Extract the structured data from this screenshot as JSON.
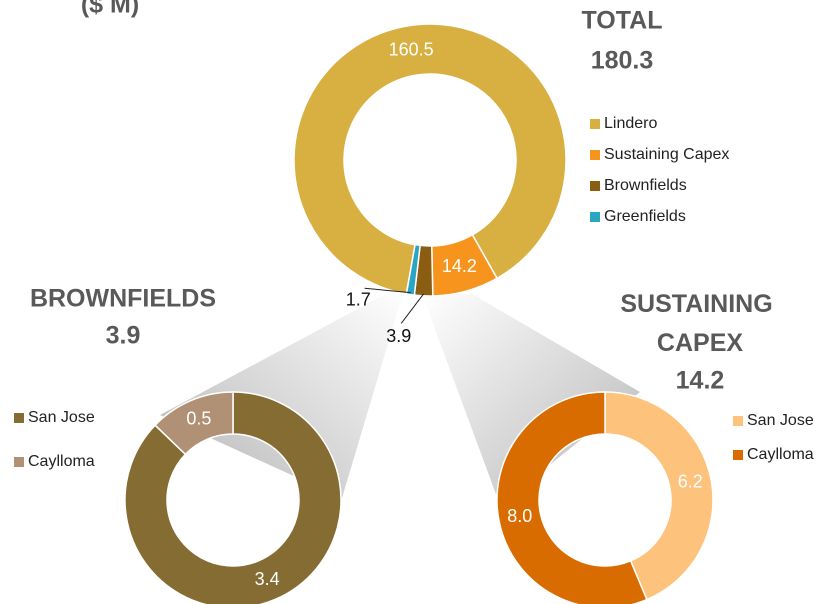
{
  "unit_label": "($ M)",
  "chart_data": [
    {
      "type": "pie",
      "title": "TOTAL",
      "total": 180.3,
      "categories": [
        "Lindero",
        "Sustaining Capex",
        "Brownfields",
        "Greenfields"
      ],
      "values": [
        160.5,
        14.2,
        3.9,
        1.7
      ],
      "colors": [
        "#d8b042",
        "#f7941d",
        "#8a5d12",
        "#2aa5c2"
      ]
    },
    {
      "type": "pie",
      "title": "BROWNFIELDS",
      "total": 3.9,
      "categories": [
        "San Jose",
        "Caylloma"
      ],
      "values": [
        3.4,
        0.5
      ],
      "colors": [
        "#856c33",
        "#b09175"
      ]
    },
    {
      "type": "pie",
      "title": "SUSTAINING CAPEX",
      "total": 14.2,
      "categories": [
        "San Jose",
        "Caylloma"
      ],
      "values": [
        6.2,
        8
      ],
      "value_labels": [
        "6.2",
        "8.0"
      ],
      "colors": [
        "#fdc27b",
        "#d96c00"
      ]
    }
  ]
}
